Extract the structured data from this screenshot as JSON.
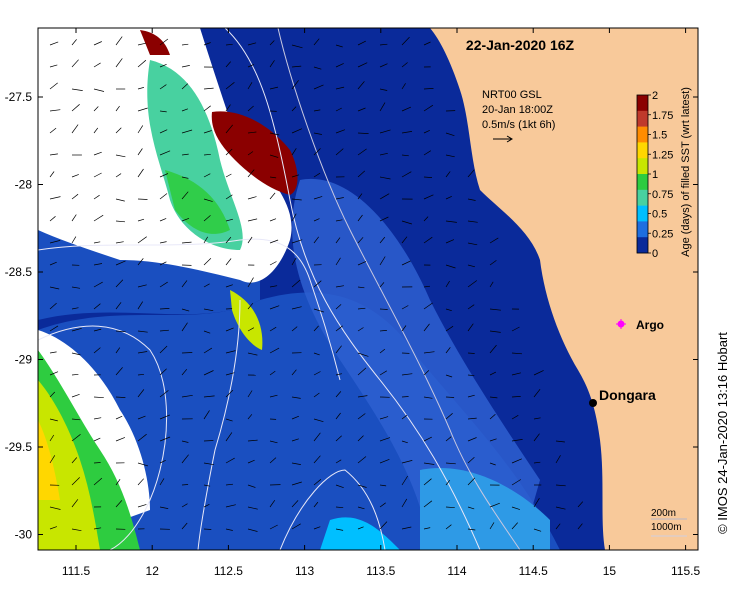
{
  "title": "22-Jan-2020 16Z",
  "current_info": {
    "line1": "NRT00 GSL",
    "line2": "20-Jan 18:00Z",
    "line3": "0.5m/s (1kt 6h)"
  },
  "colorbar": {
    "label": "Age (days) of filled SST (wrt latest)",
    "ticks": [
      "2",
      "1.75",
      "1.5",
      "1.25",
      "1",
      "0.75",
      "0.5",
      "0.25",
      "0"
    ],
    "colors": [
      "#8b0000",
      "#c0392b",
      "#ff8c00",
      "#ffd700",
      "#c8e600",
      "#2ecc40",
      "#48d1a0",
      "#00bfff",
      "#1e6ee0",
      "#0a2a9a"
    ]
  },
  "x_ticks": [
    "111.5",
    "12",
    "112.5",
    "113",
    "113.5",
    "114",
    "114.5",
    "15",
    "115.5"
  ],
  "y_ticks": [
    "-27.5",
    "-28",
    "-28.5",
    "-29",
    "-29.5",
    "-30"
  ],
  "places": {
    "argo_label": "Argo",
    "dongara_label": "Dongara"
  },
  "isobaths": {
    "label_200": "200m",
    "label_1000": "1000m"
  },
  "credit": "© IMOS 24-Jan-2020 13:16 Hobart",
  "colors": {
    "land": "#f8c99a",
    "ocean_deep": "#0a2a9a",
    "ocean_mid": "#1a4fc0",
    "ocean_light": "#2e7ae6",
    "cloud": "#ffffff"
  }
}
